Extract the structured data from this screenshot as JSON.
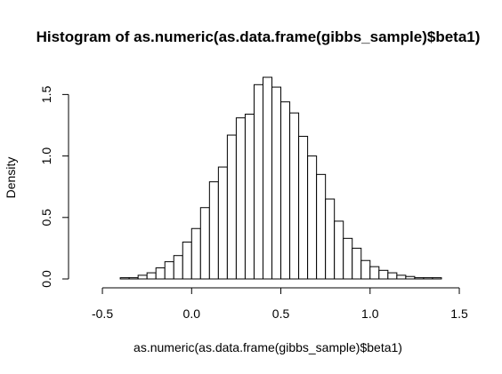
{
  "chart_data": {
    "type": "bar",
    "title": "Histogram of as.numeric(as.data.frame(gibbs_sample)$beta1)",
    "xlabel": "as.numeric(as.data.frame(gibbs_sample)$beta1)",
    "ylabel": "Density",
    "xlim": [
      -0.6,
      1.45
    ],
    "ylim": [
      0,
      1.64
    ],
    "bin_width": 0.05,
    "x_ticks": [
      -0.5,
      0.0,
      0.5,
      1.0,
      1.5
    ],
    "x_tick_labels": [
      "-0.5",
      "0.0",
      "0.5",
      "1.0",
      "1.5"
    ],
    "y_ticks": [
      0.0,
      0.5,
      1.0,
      1.5
    ],
    "y_tick_labels": [
      "0.0",
      "0.5",
      "1.0",
      "1.5"
    ],
    "grid": false,
    "bins": [
      {
        "start": -0.6,
        "end": -0.55,
        "density": 0.0
      },
      {
        "start": -0.55,
        "end": -0.5,
        "density": 0.0
      },
      {
        "start": -0.5,
        "end": -0.45,
        "density": 0.0
      },
      {
        "start": -0.45,
        "end": -0.4,
        "density": 0.0
      },
      {
        "start": -0.4,
        "end": -0.35,
        "density": 0.01
      },
      {
        "start": -0.35,
        "end": -0.3,
        "density": 0.01
      },
      {
        "start": -0.3,
        "end": -0.25,
        "density": 0.03
      },
      {
        "start": -0.25,
        "end": -0.2,
        "density": 0.05
      },
      {
        "start": -0.2,
        "end": -0.15,
        "density": 0.09
      },
      {
        "start": -0.15,
        "end": -0.1,
        "density": 0.14
      },
      {
        "start": -0.1,
        "end": -0.05,
        "density": 0.19
      },
      {
        "start": -0.05,
        "end": 0.0,
        "density": 0.3
      },
      {
        "start": 0.0,
        "end": 0.05,
        "density": 0.41
      },
      {
        "start": 0.05,
        "end": 0.1,
        "density": 0.58
      },
      {
        "start": 0.1,
        "end": 0.15,
        "density": 0.79
      },
      {
        "start": 0.15,
        "end": 0.2,
        "density": 0.91
      },
      {
        "start": 0.2,
        "end": 0.25,
        "density": 1.17
      },
      {
        "start": 0.25,
        "end": 0.3,
        "density": 1.31
      },
      {
        "start": 0.3,
        "end": 0.35,
        "density": 1.34
      },
      {
        "start": 0.35,
        "end": 0.4,
        "density": 1.58
      },
      {
        "start": 0.4,
        "end": 0.45,
        "density": 1.64
      },
      {
        "start": 0.45,
        "end": 0.5,
        "density": 1.56
      },
      {
        "start": 0.5,
        "end": 0.55,
        "density": 1.44
      },
      {
        "start": 0.55,
        "end": 0.6,
        "density": 1.35
      },
      {
        "start": 0.6,
        "end": 0.65,
        "density": 1.16
      },
      {
        "start": 0.65,
        "end": 0.7,
        "density": 1.0
      },
      {
        "start": 0.7,
        "end": 0.75,
        "density": 0.85
      },
      {
        "start": 0.75,
        "end": 0.8,
        "density": 0.65
      },
      {
        "start": 0.8,
        "end": 0.85,
        "density": 0.47
      },
      {
        "start": 0.85,
        "end": 0.9,
        "density": 0.33
      },
      {
        "start": 0.9,
        "end": 0.95,
        "density": 0.25
      },
      {
        "start": 0.95,
        "end": 1.0,
        "density": 0.15
      },
      {
        "start": 1.0,
        "end": 1.05,
        "density": 0.1
      },
      {
        "start": 1.05,
        "end": 1.1,
        "density": 0.07
      },
      {
        "start": 1.1,
        "end": 1.15,
        "density": 0.05
      },
      {
        "start": 1.15,
        "end": 1.2,
        "density": 0.03
      },
      {
        "start": 1.2,
        "end": 1.25,
        "density": 0.02
      },
      {
        "start": 1.25,
        "end": 1.3,
        "density": 0.01
      },
      {
        "start": 1.3,
        "end": 1.35,
        "density": 0.01
      },
      {
        "start": 1.35,
        "end": 1.4,
        "density": 0.01
      },
      {
        "start": 1.4,
        "end": 1.45,
        "density": 0.0
      }
    ]
  }
}
